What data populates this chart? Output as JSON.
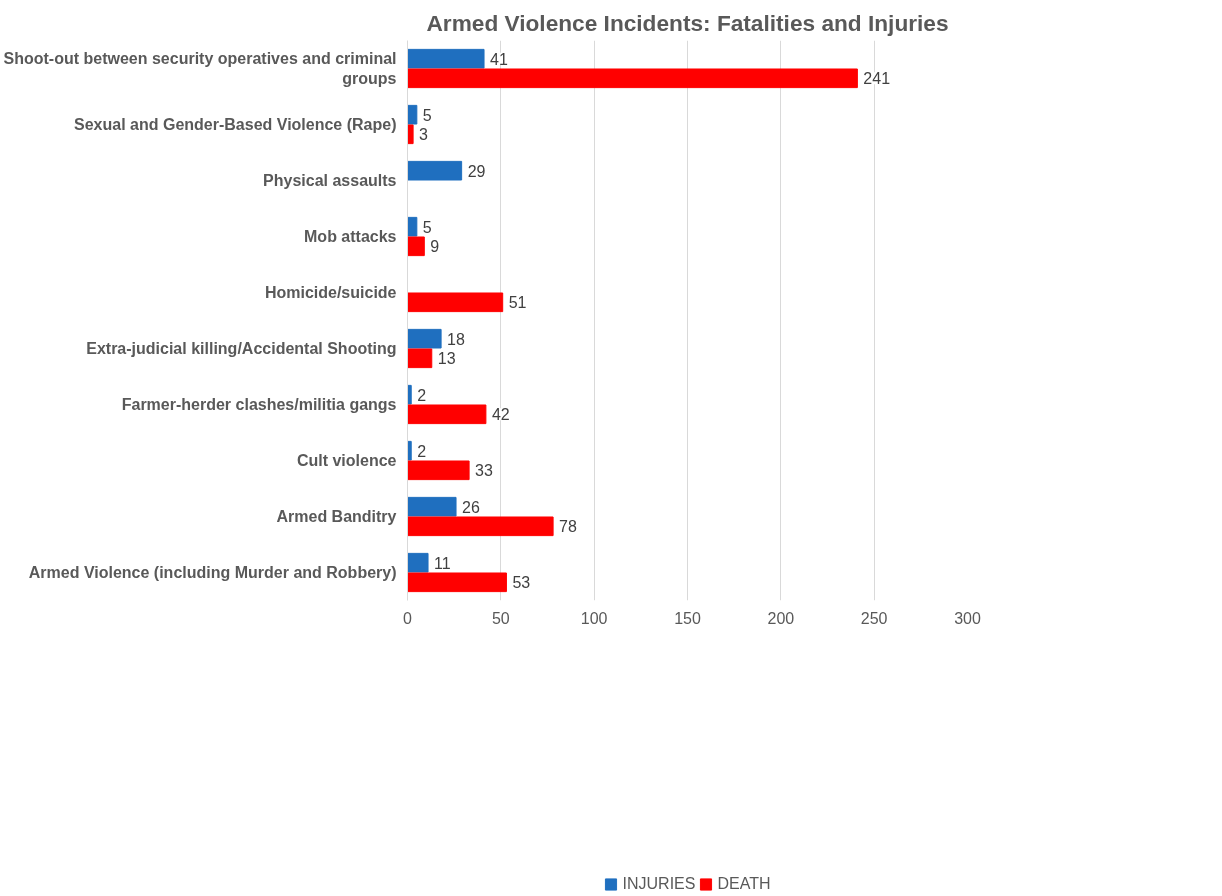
{
  "chart_data": {
    "type": "bar",
    "orientation": "horizontal",
    "title": "Armed Violence Incidents: Fatalities and Injuries",
    "categories": [
      "Shoot-out between security operatives and criminal groups",
      "Sexual and Gender-Based Violence (Rape)",
      "Physical assaults",
      "Mob attacks",
      "Homicide/suicide",
      "Extra-judicial killing/Accidental Shooting",
      "Farmer-herder clashes/militia gangs",
      "Cult violence",
      "Armed Banditry",
      "Armed Violence (including Murder and Robbery)"
    ],
    "series": [
      {
        "name": "INJURIES",
        "color": "#1f6fbf",
        "values": [
          41,
          5,
          29,
          5,
          null,
          18,
          2,
          2,
          26,
          11
        ]
      },
      {
        "name": "DEATH",
        "color": "#ff0000",
        "values": [
          241,
          3,
          null,
          9,
          51,
          13,
          42,
          33,
          78,
          53
        ]
      }
    ],
    "xlim": [
      0,
      300
    ],
    "xticks": [
      0,
      50,
      100,
      150,
      200,
      250,
      300
    ],
    "grid": "x",
    "legend": "bottom",
    "data_labels": true
  }
}
